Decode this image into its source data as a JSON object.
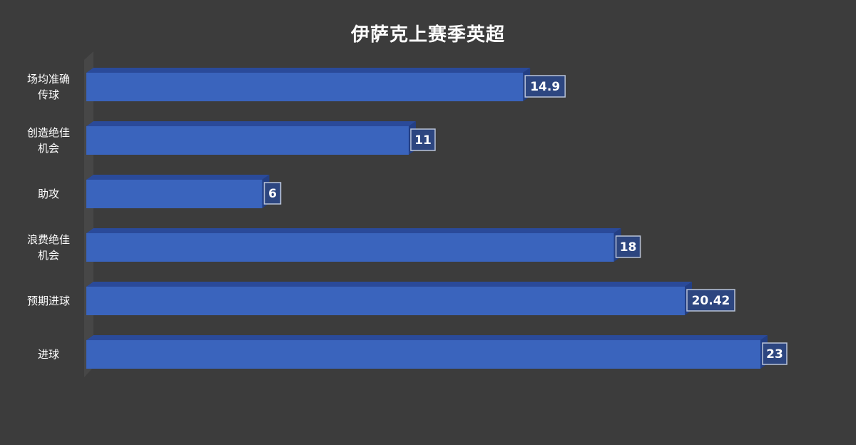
{
  "chart_data": {
    "type": "bar",
    "orientation": "horizontal",
    "title": "伊萨克上赛季英超",
    "categories": [
      "场均准确传球",
      "创造绝佳机会",
      "助攻",
      "浪费绝佳机会",
      "预期进球",
      "进球"
    ],
    "category_label_lines": [
      [
        "场均准确",
        "传球"
      ],
      [
        "创造绝佳",
        "机会"
      ],
      [
        "助攻"
      ],
      [
        "浪费绝佳",
        "机会"
      ],
      [
        "预期进球"
      ],
      [
        "进球"
      ]
    ],
    "values": [
      14.9,
      11,
      6,
      18,
      20.42,
      23
    ],
    "value_labels": [
      "14.9",
      "11",
      "6",
      "18",
      "20.42",
      "23"
    ],
    "xlim": [
      0,
      23
    ],
    "xlabel": "",
    "ylabel": "",
    "grid": false,
    "legend": "none",
    "bar_color": "#3a64bd",
    "bar_top_color": "#2a4a9a",
    "bar_end_color": "#233f85",
    "background_color": "#3c3c3c"
  }
}
